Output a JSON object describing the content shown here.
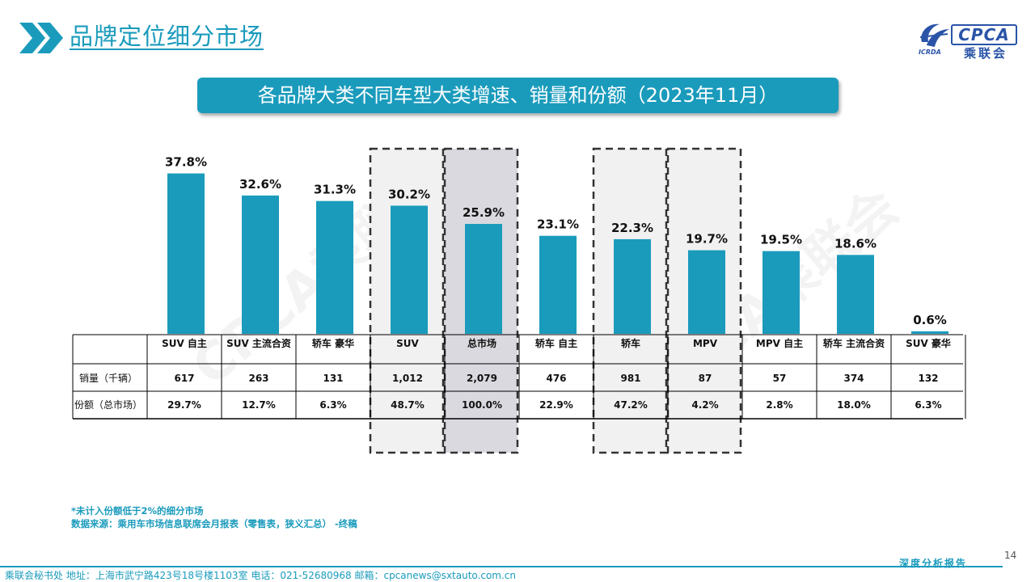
{
  "header": {
    "title": "品牌定位细分市场"
  },
  "logo": {
    "brand": "CPCA",
    "name_cn": "乘联会",
    "name_en": "ICRDA",
    "watermark": "CPCA乘联会"
  },
  "banner": {
    "title": "各品牌大类不同车型大类增速、销量和份额（2023年11月）"
  },
  "colors": {
    "accent": "#1a9bbc",
    "bar": "#1a9bbc",
    "highlight_light": "#f1f1f1",
    "highlight_dark": "#d9d9df"
  },
  "chart_data": {
    "type": "bar",
    "title": "各品牌大类不同车型大类增速、销量和份额（2023年11月）",
    "categories": [
      "SUV 自主",
      "SUV 主流合资",
      "轿车 豪华",
      "SUV",
      "总市场",
      "轿车 自主",
      "轿车",
      "MPV",
      "MPV 自主",
      "轿车 主流合资",
      "SUV 豪华"
    ],
    "values": [
      37.8,
      32.6,
      31.3,
      30.2,
      25.9,
      23.1,
      22.3,
      19.7,
      19.5,
      18.6,
      0.6
    ],
    "value_labels": [
      "37.8%",
      "32.6%",
      "31.3%",
      "30.2%",
      "25.9%",
      "23.1%",
      "22.3%",
      "19.7%",
      "19.5%",
      "18.6%",
      "0.6%"
    ],
    "ylim": [
      0,
      40
    ],
    "grid": false,
    "highlighted": [
      {
        "index": 3,
        "style": "light"
      },
      {
        "index": 4,
        "style": "dark"
      },
      {
        "index": 6,
        "style": "light"
      },
      {
        "index": 7,
        "style": "light"
      }
    ]
  },
  "table": {
    "rows": [
      {
        "label": "销量（千辆）",
        "values": [
          "617",
          "263",
          "131",
          "1,012",
          "2,079",
          "476",
          "981",
          "87",
          "57",
          "374",
          "132"
        ]
      },
      {
        "label": "份额（总市场）",
        "values": [
          "29.7%",
          "12.7%",
          "6.3%",
          "48.7%",
          "100.0%",
          "22.9%",
          "47.2%",
          "4.2%",
          "2.8%",
          "18.0%",
          "6.3%"
        ]
      }
    ]
  },
  "notes": {
    "line1": "*未计入份额低于2%的细分市场",
    "line2": "数据来源：乘用车市场信息联席会月报表（零售表，狭义汇总）  -终稿"
  },
  "footer": {
    "text": "乘联会秘书处    地址：上海市武宁路423号18号楼1103室    电话：021-52680968    邮箱：cpcanews@sxtauto.com.cn",
    "tag": "深度分析报告",
    "page": "14"
  }
}
